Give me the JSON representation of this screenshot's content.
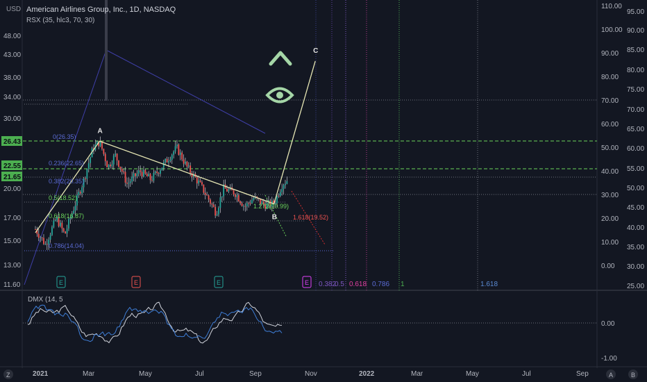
{
  "header": {
    "symbol_title": "American Airlines Group, Inc., 1D, NASDAQ",
    "indicator": "RSX (35, hlc3, 70, 30)",
    "currency": "USD"
  },
  "bottom_indicator": "DMX (14, 5",
  "colors": {
    "background": "#131722",
    "grid": "#2a2e39",
    "price_up": "#26a69a",
    "price_down": "#ef5350",
    "wick": "#c8cbd3",
    "wave_line": "#e6e6b4",
    "fib_green": "#6bd45b",
    "fib_blue": "#5b6bd4",
    "icon_green": "#a5d6a7",
    "dmx_white": "#d1d4dc",
    "dmx_blue": "#3f7fd8"
  },
  "icons": [
    "chevron-up-icon",
    "eye-icon",
    "letter-a-icon",
    "letter-b-icon"
  ],
  "chart_data": {
    "type": "candlestick",
    "title": "American Airlines Group, Inc., 1D, NASDAQ",
    "x_ticks": [
      "2021",
      "Mar",
      "May",
      "Jul",
      "Sep",
      "Nov",
      "2022",
      "Mar",
      "May",
      "Jul",
      "Sep"
    ],
    "left_axis": {
      "ticks": [
        "48.00",
        "43.00",
        "38.00",
        "34.00",
        "30.00",
        "26.43",
        "22.55",
        "21.65",
        "20.00",
        "17.00",
        "15.00",
        "13.00",
        "11.60"
      ],
      "highlighted": [
        "26.43",
        "22.55",
        "21.65"
      ],
      "scale": "log"
    },
    "right_axis_inner": {
      "ticks": [
        "110.00",
        "100.00",
        "90.00",
        "80.00",
        "70.00",
        "60.00",
        "50.00",
        "40.00",
        "30.00",
        "20.00",
        "10.00",
        "0.00"
      ]
    },
    "right_axis_outer": {
      "ticks": [
        "95.00",
        "90.00",
        "85.00",
        "80.00",
        "75.00",
        "70.00",
        "65.00",
        "60.00",
        "55.00",
        "50.00",
        "45.00",
        "40.00",
        "35.00",
        "30.00",
        "25.00"
      ]
    },
    "price_path": [
      {
        "date": "2021-01-04",
        "price": 16.5
      },
      {
        "date": "2021-01-15",
        "price": 15.2
      },
      {
        "date": "2021-01-27",
        "price": 17.5
      },
      {
        "date": "2021-02-05",
        "price": 16.0
      },
      {
        "date": "2021-02-15",
        "price": 18.5
      },
      {
        "date": "2021-02-26",
        "price": 21.5
      },
      {
        "date": "2021-03-08",
        "price": 25.5
      },
      {
        "date": "2021-03-15",
        "price": 26.3
      },
      {
        "date": "2021-03-24",
        "price": 23.0
      },
      {
        "date": "2021-04-01",
        "price": 24.5
      },
      {
        "date": "2021-04-14",
        "price": 21.0
      },
      {
        "date": "2021-04-28",
        "price": 22.5
      },
      {
        "date": "2021-05-10",
        "price": 21.5
      },
      {
        "date": "2021-05-25",
        "price": 23.5
      },
      {
        "date": "2021-06-07",
        "price": 25.5
      },
      {
        "date": "2021-06-18",
        "price": 23.0
      },
      {
        "date": "2021-07-02",
        "price": 21.0
      },
      {
        "date": "2021-07-20",
        "price": 18.0
      },
      {
        "date": "2021-07-28",
        "price": 20.5
      },
      {
        "date": "2021-08-10",
        "price": 20.0
      },
      {
        "date": "2021-08-20",
        "price": 18.6
      },
      {
        "date": "2021-08-30",
        "price": 19.5
      },
      {
        "date": "2021-09-10",
        "price": 18.8
      },
      {
        "date": "2021-09-21",
        "price": 18.9
      },
      {
        "date": "2021-09-30",
        "price": 21.0
      },
      {
        "date": "2021-10-06",
        "price": 21.5
      }
    ],
    "wave_labels": [
      {
        "label": "A",
        "date": "2021-03-15",
        "price": 26.4
      },
      {
        "label": "B",
        "date": "2021-09-21",
        "price": 18.9
      },
      {
        "label": "C",
        "date": "2021-11-05",
        "price": 40.5
      }
    ],
    "fib_retracement_labels": [
      "0(26.35)",
      "0.236(22.65)",
      "0.382(20.35)",
      "0.5(18.52)",
      "0.618(16.87)",
      "0.786(14.04)"
    ],
    "fib_extension_labels": [
      "1.272(20.99)",
      "1.618(19.52)"
    ],
    "fib_time_labels": [
      {
        "label": "0.382",
        "color": "#7e57c2"
      },
      {
        "label": "0.5",
        "color": "#7e57c2"
      },
      {
        "label": "0.618",
        "color": "#e040a0"
      },
      {
        "label": "0.786",
        "color": "#5b6bd4"
      },
      {
        "label": "1",
        "color": "#4caf50"
      },
      {
        "label": "1.618",
        "color": "#5b8bd4"
      }
    ],
    "earnings_markers": [
      {
        "label": "E",
        "color": "#26a69a"
      },
      {
        "label": "E",
        "color": "#ef5350"
      },
      {
        "label": "E",
        "color": "#26a69a"
      },
      {
        "label": "E",
        "color": "#e040fb"
      }
    ],
    "dmx": {
      "name": "DMX (14, 5",
      "ticks": [
        "0.00",
        "-1.00"
      ]
    }
  }
}
